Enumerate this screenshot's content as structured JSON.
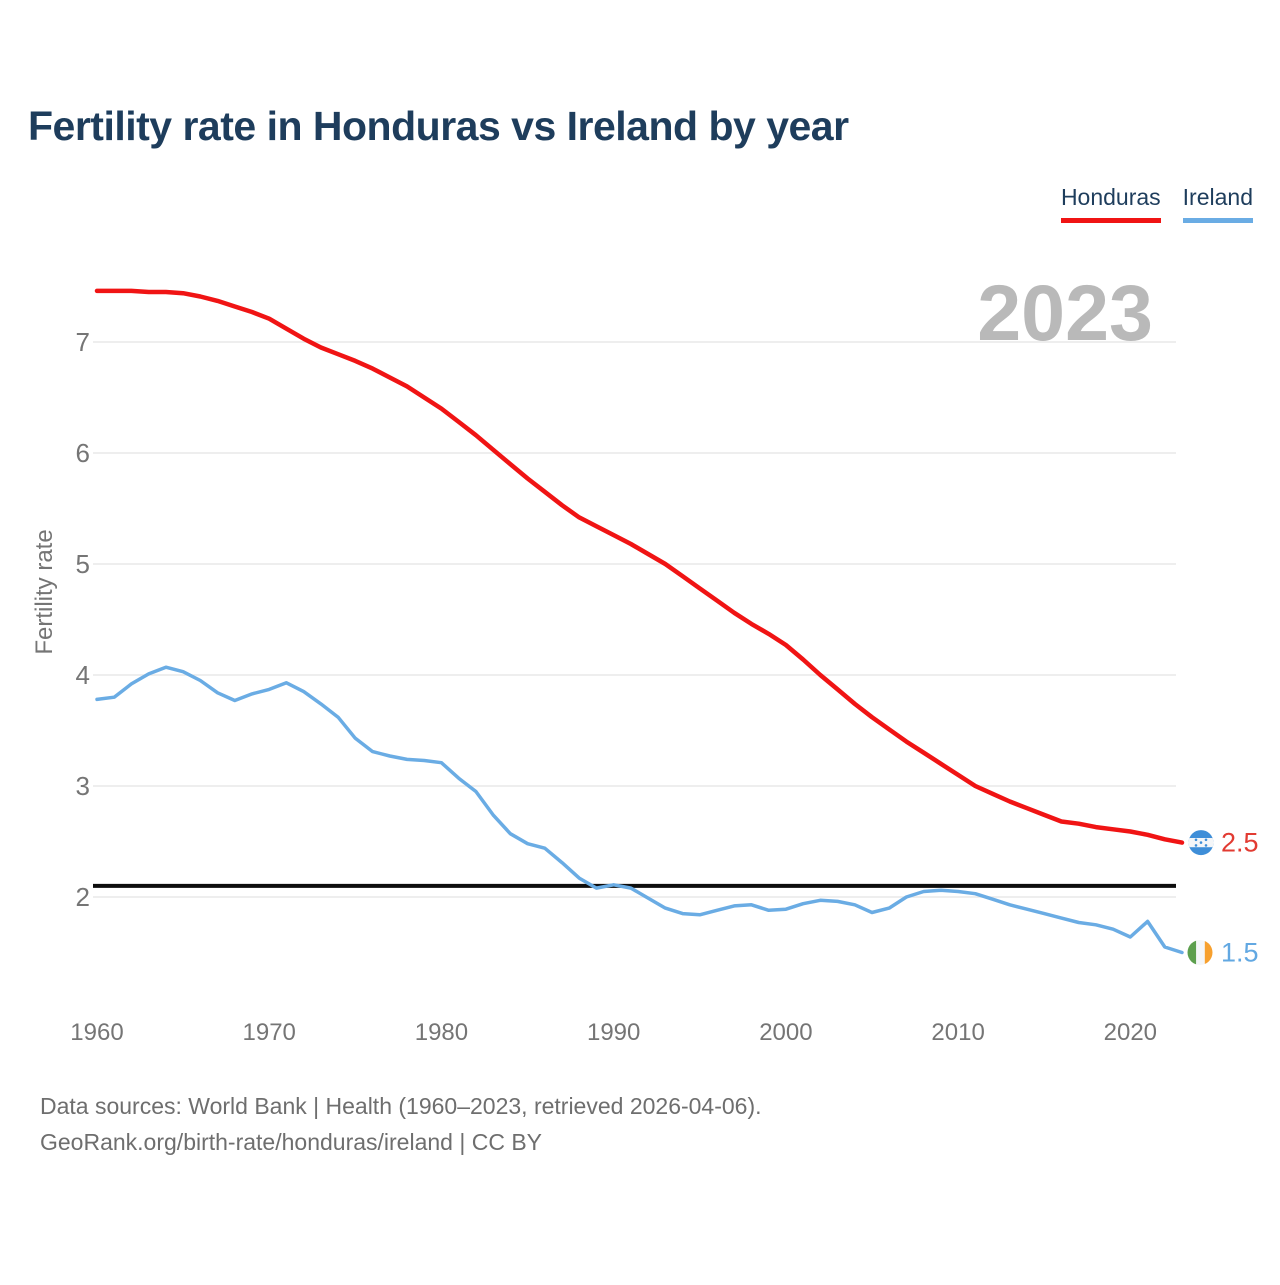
{
  "title": "Fertility rate in Honduras vs Ireland by year",
  "legend": {
    "honduras_label": "Honduras",
    "ireland_label": "Ireland"
  },
  "watermark_year": "2023",
  "colors": {
    "honduras": "#f01414",
    "ireland": "#6aace4",
    "honduras_label_text": "#e23b32",
    "ireland_label_text": "#62a8e2",
    "title_navy": "#1e3d5c",
    "axis_gray": "#757575",
    "grid_gray": "#e9e9e9",
    "watermark_gray": "#b9b9b9",
    "reference_black": "#0d0d0d"
  },
  "footer": {
    "line1": "Data sources: World Bank | Health (1960–2023, retrieved 2026-04-06).",
    "line2": "GeoRank.org/birth-rate/honduras/ireland | CC BY"
  },
  "chart_data": {
    "type": "line",
    "title": "Fertility rate in Honduras vs Ireland by year",
    "ylabel": "Fertility rate",
    "xlabel": "",
    "grid": true,
    "legend_position": "top-right",
    "x_ticks": [
      1960,
      1970,
      1980,
      1990,
      2000,
      2010,
      2020
    ],
    "y_ticks": [
      2,
      3,
      4,
      5,
      6,
      7
    ],
    "xlim": [
      1960,
      2023
    ],
    "ylim": [
      1.4,
      7.6
    ],
    "reference_line": {
      "value": 2.1,
      "label": ""
    },
    "x": [
      1960,
      1961,
      1962,
      1963,
      1964,
      1965,
      1966,
      1967,
      1968,
      1969,
      1970,
      1971,
      1972,
      1973,
      1974,
      1975,
      1976,
      1977,
      1978,
      1979,
      1980,
      1981,
      1982,
      1983,
      1984,
      1985,
      1986,
      1987,
      1988,
      1989,
      1990,
      1991,
      1992,
      1993,
      1994,
      1995,
      1996,
      1997,
      1998,
      1999,
      2000,
      2001,
      2002,
      2003,
      2004,
      2005,
      2006,
      2007,
      2008,
      2009,
      2010,
      2011,
      2012,
      2013,
      2014,
      2015,
      2016,
      2017,
      2018,
      2019,
      2020,
      2021,
      2022,
      2023
    ],
    "series": [
      {
        "name": "Honduras",
        "end_label": "2.5",
        "flag": "honduras-flag",
        "values": [
          7.46,
          7.46,
          7.46,
          7.45,
          7.45,
          7.44,
          7.41,
          7.37,
          7.32,
          7.27,
          7.21,
          7.12,
          7.03,
          6.95,
          6.89,
          6.83,
          6.76,
          6.68,
          6.6,
          6.5,
          6.4,
          6.28,
          6.16,
          6.03,
          5.9,
          5.77,
          5.65,
          5.53,
          5.42,
          5.34,
          5.26,
          5.18,
          5.09,
          5.0,
          4.89,
          4.78,
          4.67,
          4.56,
          4.46,
          4.37,
          4.27,
          4.14,
          4.0,
          3.87,
          3.74,
          3.62,
          3.51,
          3.4,
          3.3,
          3.2,
          3.1,
          3.0,
          2.93,
          2.86,
          2.8,
          2.74,
          2.68,
          2.66,
          2.63,
          2.61,
          2.59,
          2.56,
          2.52,
          2.49
        ]
      },
      {
        "name": "Ireland",
        "end_label": "1.5",
        "flag": "ireland-flag",
        "values": [
          3.78,
          3.8,
          3.92,
          4.01,
          4.07,
          4.03,
          3.95,
          3.84,
          3.77,
          3.83,
          3.87,
          3.93,
          3.85,
          3.74,
          3.62,
          3.43,
          3.31,
          3.27,
          3.24,
          3.23,
          3.21,
          3.07,
          2.95,
          2.74,
          2.57,
          2.48,
          2.44,
          2.31,
          2.17,
          2.08,
          2.11,
          2.08,
          1.99,
          1.9,
          1.85,
          1.84,
          1.88,
          1.92,
          1.93,
          1.88,
          1.89,
          1.94,
          1.97,
          1.96,
          1.93,
          1.86,
          1.9,
          2.0,
          2.05,
          2.06,
          2.05,
          2.03,
          1.98,
          1.93,
          1.89,
          1.85,
          1.81,
          1.77,
          1.75,
          1.71,
          1.64,
          1.78,
          1.55,
          1.5
        ]
      }
    ]
  }
}
